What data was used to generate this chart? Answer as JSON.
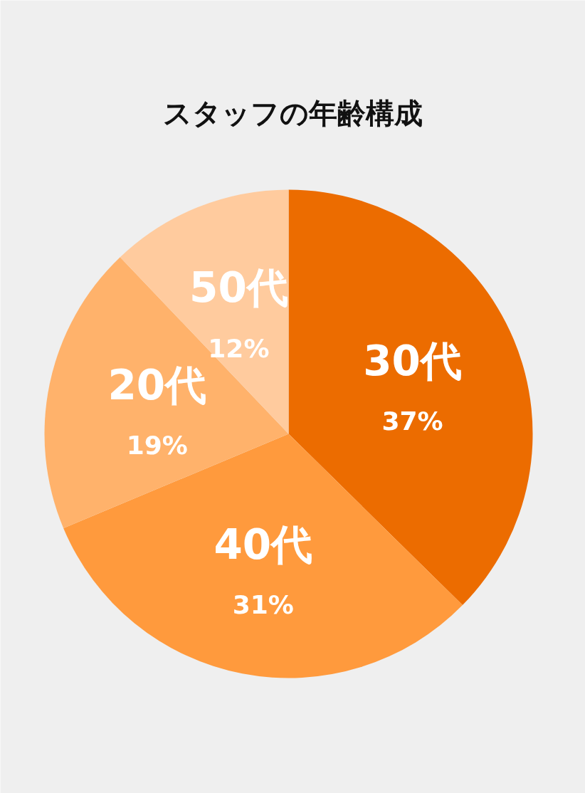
{
  "chart_data": {
    "type": "pie",
    "title": "スタッフの年齢構成",
    "categories": [
      "30代",
      "40代",
      "20代",
      "50代"
    ],
    "values": [
      37,
      31,
      19,
      12
    ],
    "value_labels": [
      "37%",
      "31%",
      "19%",
      "12%"
    ],
    "colors": [
      "#ec6c00",
      "#ff9a3d",
      "#ffb26b",
      "#ffcb9e"
    ]
  }
}
